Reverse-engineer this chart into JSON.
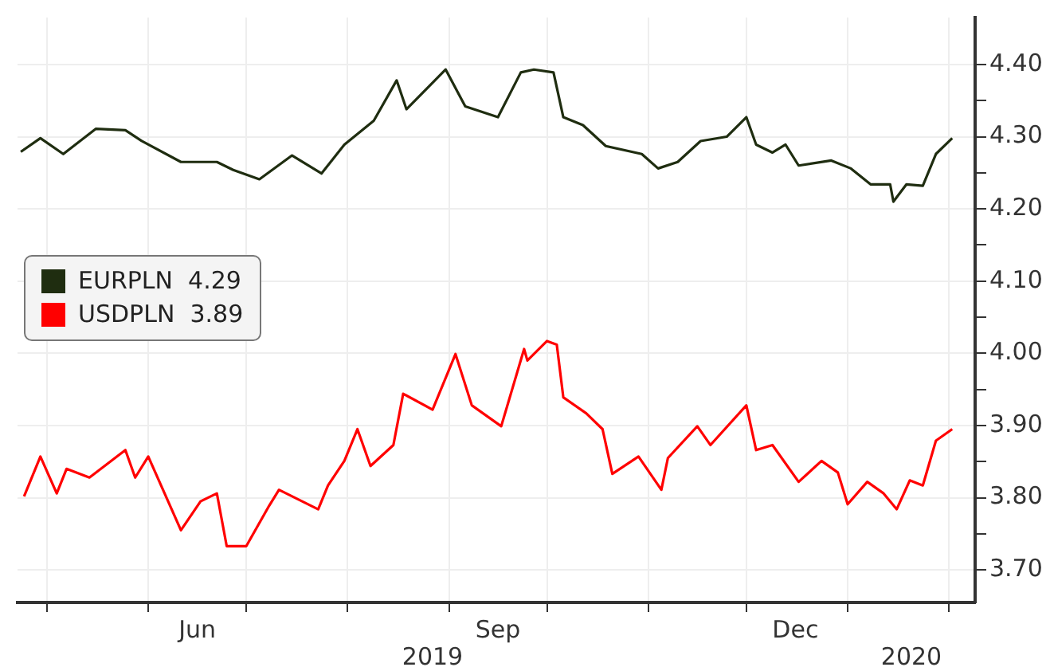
{
  "chart_data": {
    "type": "line",
    "xlim": [
      "2019-04-22",
      "2020-02-09"
    ],
    "xticks": [
      {
        "value": "2019-05-01",
        "label": null
      },
      {
        "value": "2019-06-01",
        "label": null
      },
      {
        "value": "2019-06-16",
        "label": "Jun"
      },
      {
        "value": "2019-07-01",
        "label": null
      },
      {
        "value": "2019-08-01",
        "label": null
      },
      {
        "value": "2019-09-01",
        "label": null
      },
      {
        "value": "2019-09-16",
        "label": "Sep"
      },
      {
        "value": "2019-10-01",
        "label": null
      },
      {
        "value": "2019-11-01",
        "label": null
      },
      {
        "value": "2019-12-01",
        "label": null
      },
      {
        "value": "2019-12-16",
        "label": "Dec"
      },
      {
        "value": "2020-01-01",
        "label": null
      },
      {
        "value": "2020-02-01",
        "label": null
      }
    ],
    "ylim": [
      3.655,
      4.465
    ],
    "yticks": [
      {
        "value": 3.7,
        "label": "3.70"
      },
      {
        "value": 3.75,
        "label": null
      },
      {
        "value": 3.8,
        "label": "3.80"
      },
      {
        "value": 3.85,
        "label": null
      },
      {
        "value": 3.9,
        "label": "3.90"
      },
      {
        "value": 3.95,
        "label": null
      },
      {
        "value": 4.0,
        "label": "4.00"
      },
      {
        "value": 4.05,
        "label": null
      },
      {
        "value": 4.1,
        "label": "4.10"
      },
      {
        "value": 4.15,
        "label": null
      },
      {
        "value": 4.2,
        "label": "4.20"
      },
      {
        "value": 4.25,
        "label": null
      },
      {
        "value": 4.3,
        "label": "4.30"
      },
      {
        "value": 4.35,
        "label": null
      },
      {
        "value": 4.4,
        "label": "4.40"
      }
    ],
    "grid": true,
    "legend": "left",
    "marker": "none",
    "line_style": "solid",
    "annotations": [
      "2019",
      "2020"
    ],
    "series": [
      {
        "name": "EURPLN  4.29",
        "color": "#1f2d10",
        "x": [
          "2019-04-23",
          "2019-04-29",
          "2019-05-06",
          "2019-05-16",
          "2019-05-25",
          "2019-05-30",
          "2019-06-11",
          "2019-06-22",
          "2019-06-27",
          "2019-07-05",
          "2019-07-15",
          "2019-07-24",
          "2019-07-31",
          "2019-08-09",
          "2019-08-16",
          "2019-08-19",
          "2019-08-31",
          "2019-09-06",
          "2019-09-16",
          "2019-09-23",
          "2019-09-27",
          "2019-10-03",
          "2019-10-06",
          "2019-10-12",
          "2019-10-19",
          "2019-10-30",
          "2019-11-04",
          "2019-11-10",
          "2019-11-17",
          "2019-11-25",
          "2019-12-01",
          "2019-12-04",
          "2019-12-09",
          "2019-12-13",
          "2019-12-17",
          "2019-12-27",
          "2020-01-02",
          "2020-01-08",
          "2020-01-14",
          "2020-01-15",
          "2020-01-19",
          "2020-01-24",
          "2020-01-28",
          "2020-02-02"
        ],
        "values": [
          4.279,
          4.298,
          4.276,
          4.311,
          4.309,
          4.294,
          4.265,
          4.265,
          4.254,
          4.241,
          4.274,
          4.249,
          4.289,
          4.322,
          4.378,
          4.338,
          4.393,
          4.342,
          4.327,
          4.389,
          4.393,
          4.389,
          4.327,
          4.316,
          4.287,
          4.276,
          4.256,
          4.265,
          4.294,
          4.3,
          4.327,
          4.289,
          4.278,
          4.289,
          4.26,
          4.267,
          4.256,
          4.234,
          4.234,
          4.21,
          4.234,
          4.232,
          4.276,
          4.298
        ]
      },
      {
        "name": "USDPLN  3.89",
        "color": "#ff0000",
        "x": [
          "2019-04-24",
          "2019-04-29",
          "2019-05-04",
          "2019-05-07",
          "2019-05-14",
          "2019-05-25",
          "2019-05-28",
          "2019-06-01",
          "2019-06-06",
          "2019-06-11",
          "2019-06-17",
          "2019-06-22",
          "2019-06-25",
          "2019-07-01",
          "2019-07-08",
          "2019-07-11",
          "2019-07-23",
          "2019-07-26",
          "2019-07-31",
          "2019-08-04",
          "2019-08-08",
          "2019-08-15",
          "2019-08-18",
          "2019-08-27",
          "2019-09-03",
          "2019-09-08",
          "2019-09-17",
          "2019-09-24",
          "2019-09-25",
          "2019-10-01",
          "2019-10-04",
          "2019-10-06",
          "2019-10-13",
          "2019-10-18",
          "2019-10-21",
          "2019-10-29",
          "2019-11-05",
          "2019-11-07",
          "2019-11-16",
          "2019-11-20",
          "2019-12-01",
          "2019-12-04",
          "2019-12-09",
          "2019-12-17",
          "2019-12-24",
          "2019-12-29",
          "2020-01-01",
          "2020-01-07",
          "2020-01-12",
          "2020-01-16",
          "2020-01-20",
          "2020-01-24",
          "2020-01-28",
          "2020-02-02"
        ],
        "values": [
          3.802,
          3.857,
          3.806,
          3.84,
          3.828,
          3.866,
          3.828,
          3.857,
          3.806,
          3.755,
          3.795,
          3.806,
          3.733,
          3.733,
          3.789,
          3.811,
          3.784,
          3.817,
          3.851,
          3.895,
          3.844,
          3.873,
          3.944,
          3.922,
          3.999,
          3.928,
          3.899,
          4.006,
          3.99,
          4.017,
          4.012,
          3.939,
          3.917,
          3.895,
          3.833,
          3.857,
          3.811,
          3.855,
          3.899,
          3.873,
          3.928,
          3.866,
          3.873,
          3.822,
          3.851,
          3.835,
          3.791,
          3.822,
          3.806,
          3.784,
          3.824,
          3.817,
          3.879,
          3.895
        ]
      }
    ]
  }
}
